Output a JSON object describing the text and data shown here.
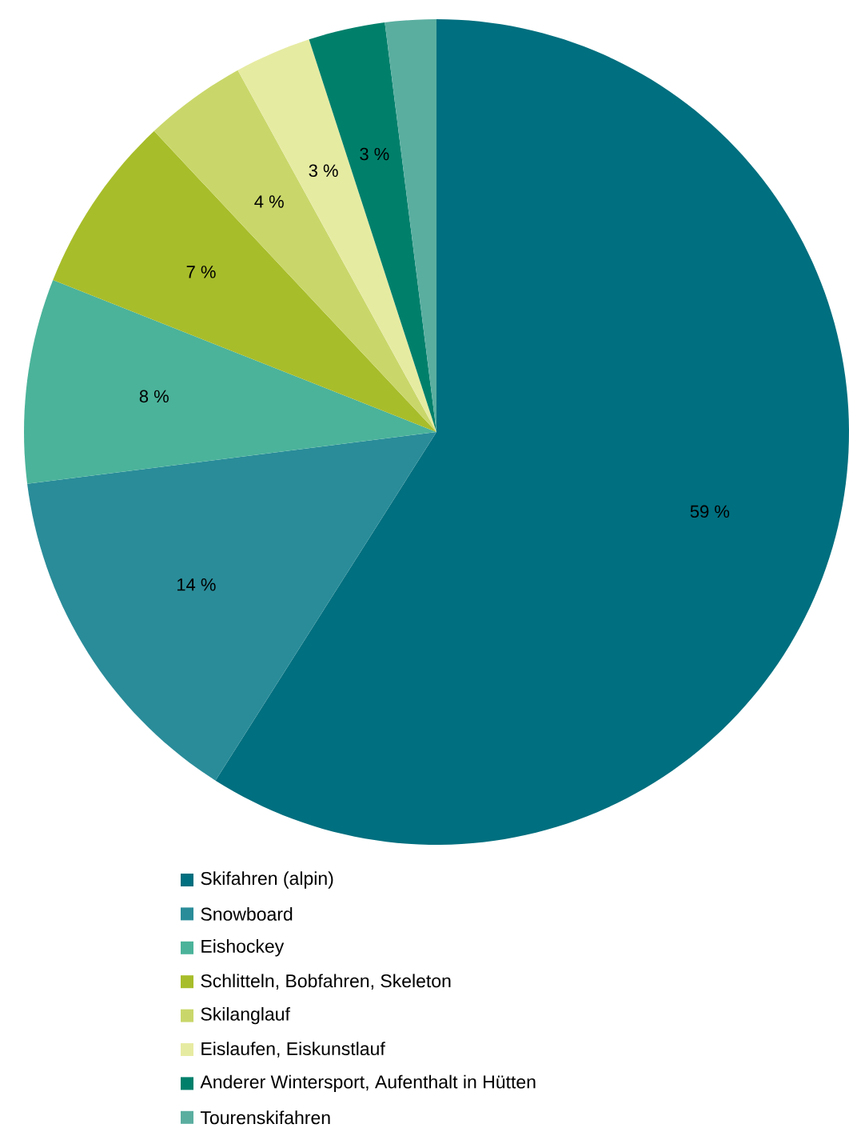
{
  "chart_data": {
    "type": "pie",
    "categories": [
      "Skifahren (alpin)",
      "Snowboard",
      "Eishockey",
      "Schlitteln, Bobfahren, Skeleton",
      "Skilanglauf",
      "Eislaufen, Eiskunstlauf",
      "Anderer Wintersport, Aufenthalt in Hütten",
      "Tourenskifahren"
    ],
    "values": [
      59,
      14,
      8,
      7,
      4,
      3,
      3,
      2
    ],
    "value_labels": [
      "59 %",
      "14 %",
      "8 %",
      "7 %",
      "4 %",
      "3 %",
      "3 %",
      null
    ],
    "colors": [
      "#006f7f",
      "#2a8c99",
      "#4bb39a",
      "#a8bd2a",
      "#c9d76a",
      "#e6eba2",
      "#00806b",
      "#5aaea0"
    ],
    "legend": "bottom"
  }
}
